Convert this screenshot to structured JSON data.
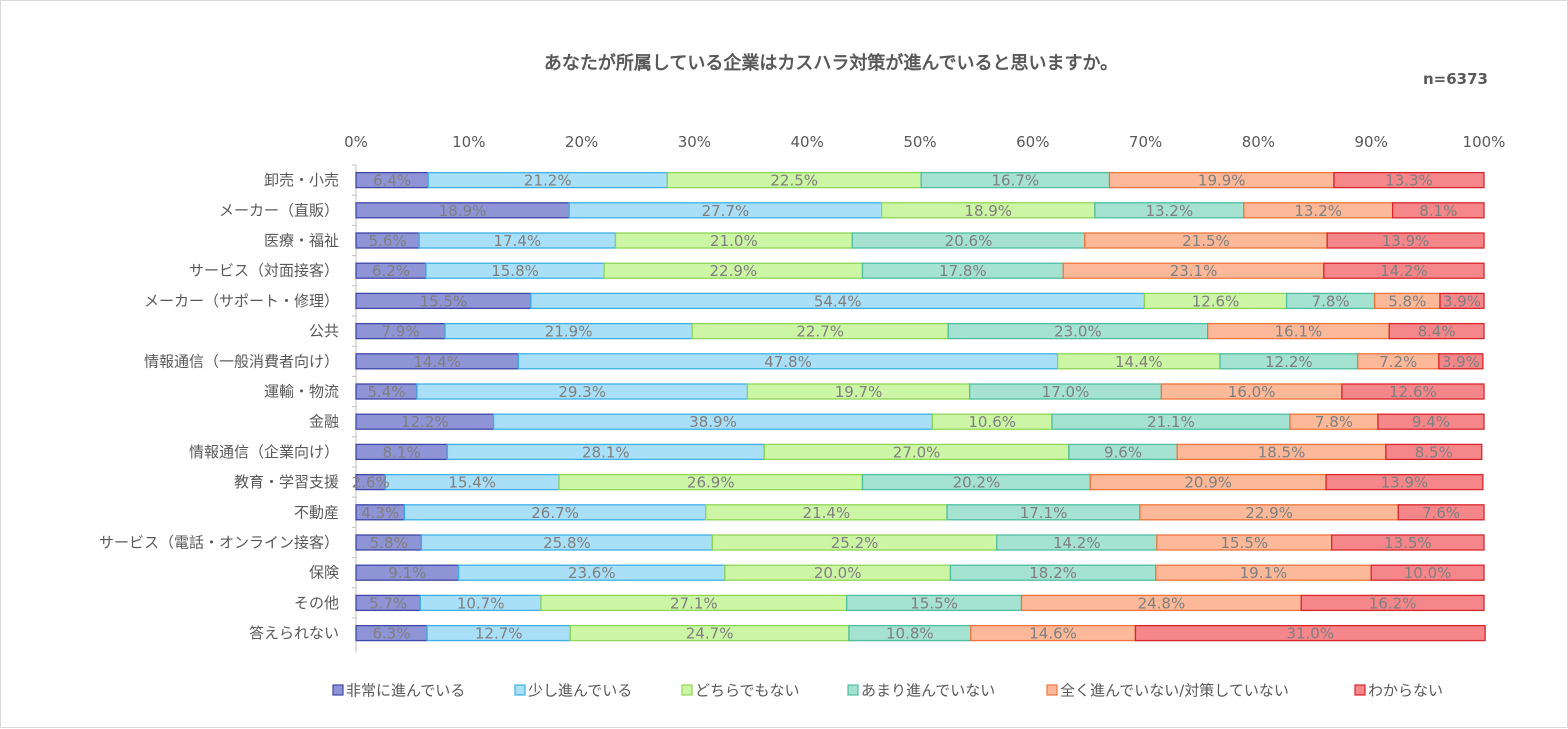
{
  "chart_data": {
    "type": "bar",
    "orientation": "horizontal",
    "stacked": "percent",
    "title": "あなたが所属している企業はカスハラ対策が進んでいると思いますか。",
    "subtitle": "n=6373",
    "xlim": [
      0,
      100
    ],
    "x_ticks": [
      "0%",
      "10%",
      "20%",
      "30%",
      "40%",
      "50%",
      "60%",
      "70%",
      "80%",
      "90%",
      "100%"
    ],
    "legend_position": "bottom",
    "categories": [
      "卸売・小売",
      "メーカー（直販）",
      "医療・福祉",
      "サービス（対面接客）",
      "メーカー（サポート・修理）",
      "公共",
      "情報通信（一般消費者向け）",
      "運輸・物流",
      "金融",
      "情報通信（企業向け）",
      "教育・学習支援",
      "不動産",
      "サービス（電話・オンライン接客）",
      "保険",
      "その他",
      "答えられない"
    ],
    "series": [
      {
        "name": "非常に進んでいる",
        "fill": "#8e94d6",
        "stroke": "#3f48a8",
        "values": [
          6.4,
          18.9,
          5.6,
          6.2,
          15.5,
          7.9,
          14.4,
          5.4,
          12.2,
          8.1,
          2.6,
          4.3,
          5.8,
          9.1,
          5.7,
          6.3
        ],
        "labels": [
          "6.4%",
          "18.9%",
          "5.6%",
          "6.2%",
          "15.5%",
          "7.9%",
          "14.4%",
          "5.4%",
          "12.2%",
          "8.1%",
          "2.6%",
          "4.3%",
          "5.8%",
          "9.1%",
          "5.7%",
          "6.3%"
        ]
      },
      {
        "name": "少し進んでいる",
        "fill": "#a9dff7",
        "stroke": "#3fb0e6",
        "values": [
          21.2,
          27.7,
          17.4,
          15.8,
          54.4,
          21.9,
          47.8,
          29.3,
          38.9,
          28.1,
          15.4,
          26.7,
          25.8,
          23.6,
          10.7,
          12.7
        ],
        "labels": [
          "21.2%",
          "27.7%",
          "17.4%",
          "15.8%",
          "54.4%",
          "21.9%",
          "47.8%",
          "29.3%",
          "38.9%",
          "28.1%",
          "15.4%",
          "26.7%",
          "25.8%",
          "23.6%",
          "10.7%",
          "12.7%"
        ]
      },
      {
        "name": "どちらでもない",
        "fill": "#ccf5a6",
        "stroke": "#8fd654",
        "values": [
          22.5,
          18.9,
          21.0,
          22.9,
          12.6,
          22.7,
          14.4,
          19.7,
          10.6,
          27.0,
          26.9,
          21.4,
          25.2,
          20.0,
          27.1,
          24.7
        ],
        "labels": [
          "22.5%",
          "18.9%",
          "21.0%",
          "22.9%",
          "12.6%",
          "22.7%",
          "14.4%",
          "19.7%",
          "10.6%",
          "27.0%",
          "26.9%",
          "21.4%",
          "25.2%",
          "20.0%",
          "27.1%",
          "24.7%"
        ]
      },
      {
        "name": "あまり進んでいない",
        "fill": "#a5e2d2",
        "stroke": "#4fbfa0",
        "values": [
          16.7,
          13.2,
          20.6,
          17.8,
          7.8,
          23.0,
          12.2,
          17.0,
          21.1,
          9.6,
          20.2,
          17.1,
          14.2,
          18.2,
          15.5,
          10.8
        ],
        "labels": [
          "16.7%",
          "13.2%",
          "20.6%",
          "17.8%",
          "7.8%",
          "23.0%",
          "12.2%",
          "17.0%",
          "21.1%",
          "9.6%",
          "20.2%",
          "17.1%",
          "14.2%",
          "18.2%",
          "15.5%",
          "10.8%"
        ]
      },
      {
        "name": "全く進んでいない/対策していない",
        "fill": "#fbb99a",
        "stroke": "#f0753c",
        "values": [
          19.9,
          13.2,
          21.5,
          23.1,
          5.8,
          16.1,
          7.2,
          16.0,
          7.8,
          18.5,
          20.9,
          22.9,
          15.5,
          19.1,
          24.8,
          14.6
        ],
        "labels": [
          "19.9%",
          "13.2%",
          "21.5%",
          "23.1%",
          "5.8%",
          "16.1%",
          "7.2%",
          "16.0%",
          "7.8%",
          "18.5%",
          "20.9%",
          "22.9%",
          "15.5%",
          "19.1%",
          "24.8%",
          "14.6%"
        ]
      },
      {
        "name": "わからない",
        "fill": "#f5878a",
        "stroke": "#d9262c",
        "values": [
          13.3,
          8.1,
          13.9,
          14.2,
          3.9,
          8.4,
          3.9,
          12.6,
          9.4,
          8.5,
          13.9,
          7.6,
          13.5,
          10.0,
          16.2,
          31.0
        ],
        "labels": [
          "13.3%",
          "8.1%",
          "13.9%",
          "14.2%",
          "3.9%",
          "8.4%",
          "3.9%",
          "12.6%",
          "9.4%",
          "8.5%",
          "13.9%",
          "7.6%",
          "13.5%",
          "10.0%",
          "16.2%",
          "31.0%"
        ]
      }
    ]
  }
}
